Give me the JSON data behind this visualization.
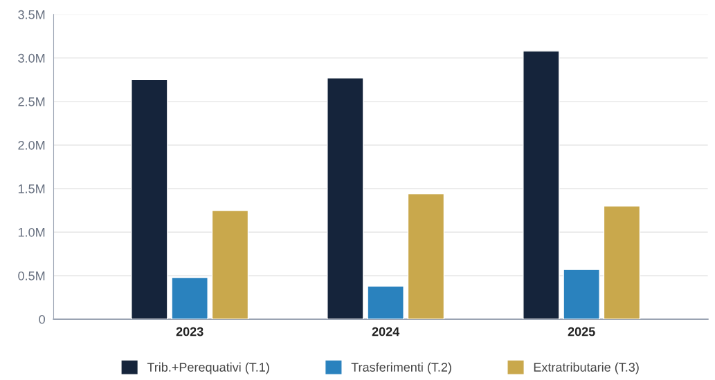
{
  "chart_data": {
    "type": "bar",
    "categories": [
      "2023",
      "2024",
      "2025"
    ],
    "series": [
      {
        "name": "Trib.+Perequativi (T.1)",
        "color": "#15243b",
        "values": [
          2750000,
          2770000,
          3080000
        ]
      },
      {
        "name": "Trasferimenti (T.2)",
        "color": "#2a82be",
        "values": [
          480000,
          380000,
          570000
        ]
      },
      {
        "name": "Extratributarie (T.3)",
        "color": "#c9a84c",
        "values": [
          1250000,
          1440000,
          1300000
        ]
      }
    ],
    "ylim": [
      0,
      3500000
    ],
    "yticks": [
      0,
      {
        "value": 500000,
        "label": "0.5M"
      },
      {
        "value": 1000000,
        "label": "1.0M"
      },
      {
        "value": 1500000,
        "label": "1.5M"
      },
      {
        "value": 2000000,
        "label": "2.0M"
      },
      {
        "value": 2500000,
        "label": "2.5M"
      },
      {
        "value": 3000000,
        "label": "3.0M"
      },
      {
        "value": 3500000,
        "label": "3.5M"
      }
    ],
    "grid": "y",
    "legend": "bottom"
  }
}
